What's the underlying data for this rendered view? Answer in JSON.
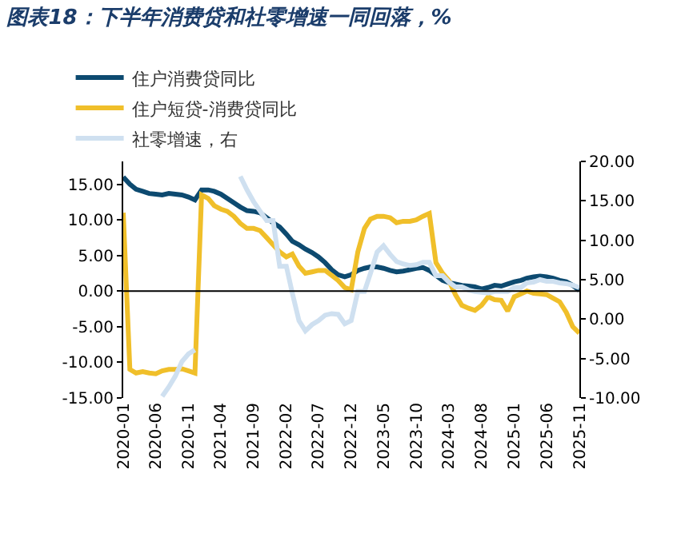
{
  "chart_data": {
    "type": "line",
    "title": "图表18：下半年消费贷和社零增速一同回落，%",
    "x": [
      "2020-01",
      "2020-02",
      "2020-03",
      "2020-04",
      "2020-05",
      "2020-06",
      "2020-07",
      "2020-08",
      "2020-09",
      "2020-10",
      "2020-11",
      "2020-12",
      "2021-01",
      "2021-02",
      "2021-03",
      "2021-04",
      "2021-05",
      "2021-06",
      "2021-07",
      "2021-08",
      "2021-09",
      "2021-10",
      "2021-11",
      "2021-12",
      "2022-01",
      "2022-02",
      "2022-03",
      "2022-04",
      "2022-05",
      "2022-06",
      "2022-07",
      "2022-08",
      "2022-09",
      "2022-10",
      "2022-11",
      "2022-12",
      "2023-01",
      "2023-02",
      "2023-03",
      "2023-04",
      "2023-05",
      "2023-06",
      "2023-07",
      "2023-08",
      "2023-09",
      "2023-10",
      "2023-11",
      "2023-12",
      "2024-01",
      "2024-02",
      "2024-03",
      "2024-04",
      "2024-05",
      "2024-06",
      "2024-07",
      "2024-08",
      "2024-09",
      "2024-10",
      "2024-11",
      "2024-12",
      "2025-01",
      "2025-02",
      "2025-03",
      "2025-04",
      "2025-05",
      "2025-06",
      "2025-07",
      "2025-08",
      "2025-09",
      "2025-10",
      "2025-11"
    ],
    "series": [
      {
        "name": "住户消费贷同比",
        "color": "#0d4a70",
        "values": [
          16.0,
          15.0,
          14.3,
          14.0,
          13.7,
          13.6,
          13.5,
          13.7,
          13.6,
          13.5,
          13.2,
          12.8,
          14.2,
          14.2,
          14.0,
          13.6,
          13.0,
          12.4,
          11.8,
          11.3,
          11.2,
          11.0,
          10.3,
          9.6,
          9.0,
          8.0,
          7.0,
          6.5,
          5.9,
          5.4,
          4.8,
          4.0,
          3.0,
          2.3,
          2.0,
          2.3,
          2.9,
          3.2,
          3.4,
          3.4,
          3.2,
          2.9,
          2.7,
          2.8,
          3.0,
          3.2,
          3.3,
          2.9,
          2.2,
          1.5,
          1.2,
          1.0,
          0.8,
          0.7,
          0.6,
          0.3,
          0.5,
          0.8,
          0.7,
          1.0,
          1.3,
          1.5,
          1.8,
          2.0,
          2.1,
          2.0,
          1.8,
          1.5,
          1.3,
          0.8,
          0.1
        ]
      },
      {
        "name": "住户短贷-消费贷同比",
        "color": "#f0bf2a",
        "values": [
          11.0,
          -11.0,
          -11.5,
          -11.3,
          -11.5,
          -11.6,
          -11.2,
          -11.0,
          -11.0,
          -10.9,
          -11.2,
          -11.5,
          13.5,
          13.0,
          12.0,
          11.5,
          11.2,
          10.5,
          9.5,
          8.8,
          8.8,
          8.5,
          7.5,
          6.5,
          5.5,
          4.8,
          5.2,
          3.5,
          2.5,
          2.7,
          2.9,
          2.9,
          2.2,
          1.5,
          0.5,
          0.2,
          5.5,
          8.8,
          10.1,
          10.5,
          10.5,
          10.3,
          9.6,
          9.8,
          9.8,
          10.0,
          10.5,
          10.9,
          4.0,
          2.5,
          1.5,
          -0.5,
          -2.0,
          -2.4,
          -2.7,
          -2.0,
          -0.8,
          -1.2,
          -1.3,
          -2.8,
          -0.8,
          -0.4,
          0.0,
          -0.3,
          -0.4,
          -0.5,
          -1.0,
          -1.5,
          -3.0,
          -5.0,
          -5.9
        ]
      },
      {
        "name": "社零增速，右",
        "color": "#cfe0f0",
        "axis": "y2",
        "values": [
          null,
          null,
          null,
          null,
          null,
          null,
          -9.8,
          -8.6,
          -7.2,
          -5.4,
          -4.4,
          -3.9,
          null,
          null,
          null,
          null,
          null,
          null,
          18.1,
          16.4,
          14.9,
          13.7,
          12.5,
          12.5,
          6.7,
          6.7,
          3.3,
          -0.2,
          -1.5,
          -0.7,
          -0.2,
          0.5,
          0.7,
          0.6,
          -0.6,
          -0.2,
          3.5,
          3.5,
          5.8,
          8.5,
          9.3,
          8.2,
          7.3,
          7.0,
          6.8,
          6.9,
          7.2,
          7.2,
          5.5,
          5.5,
          4.7,
          4.1,
          4.1,
          3.7,
          3.5,
          3.4,
          3.3,
          3.5,
          3.5,
          3.5,
          4.0,
          4.0,
          4.6,
          4.7,
          5.0,
          4.8,
          4.8,
          4.6,
          4.5,
          4.3,
          4.0
        ]
      }
    ],
    "xlim": [
      "2020-01",
      "2025-11"
    ],
    "xticks": [
      "2020-01",
      "2020-06",
      "2020-11",
      "2021-04",
      "2021-09",
      "2022-02",
      "2022-07",
      "2022-12",
      "2023-05",
      "2023-10",
      "2024-03",
      "2024-08",
      "2025-01",
      "2025-06",
      "2025-11"
    ],
    "ylim": [
      -15,
      18.2
    ],
    "yticks": [
      {
        "value": -15,
        "label": "-15.00"
      },
      {
        "value": -10,
        "label": "-10.00"
      },
      {
        "value": -5,
        "label": "-5.00"
      },
      {
        "value": 0,
        "label": "0.00"
      },
      {
        "value": 5,
        "label": "5.00"
      },
      {
        "value": 10,
        "label": "10.00"
      },
      {
        "value": 15,
        "label": "15.00"
      }
    ],
    "y2lim": [
      -10,
      20
    ],
    "y2ticks": [
      {
        "value": -10,
        "label": "-10.00"
      },
      {
        "value": -5,
        "label": "-5.00"
      },
      {
        "value": 0,
        "label": "0.00"
      },
      {
        "value": 5,
        "label": "5.00"
      },
      {
        "value": 10,
        "label": "10.00"
      },
      {
        "value": 15,
        "label": "15.00"
      },
      {
        "value": 20,
        "label": "20.00"
      }
    ],
    "ref_lines": [
      {
        "axis": "y",
        "value": 0,
        "color": "#000000"
      }
    ],
    "grid": false,
    "legend": "top",
    "marker": "none",
    "line_style": "solid"
  }
}
